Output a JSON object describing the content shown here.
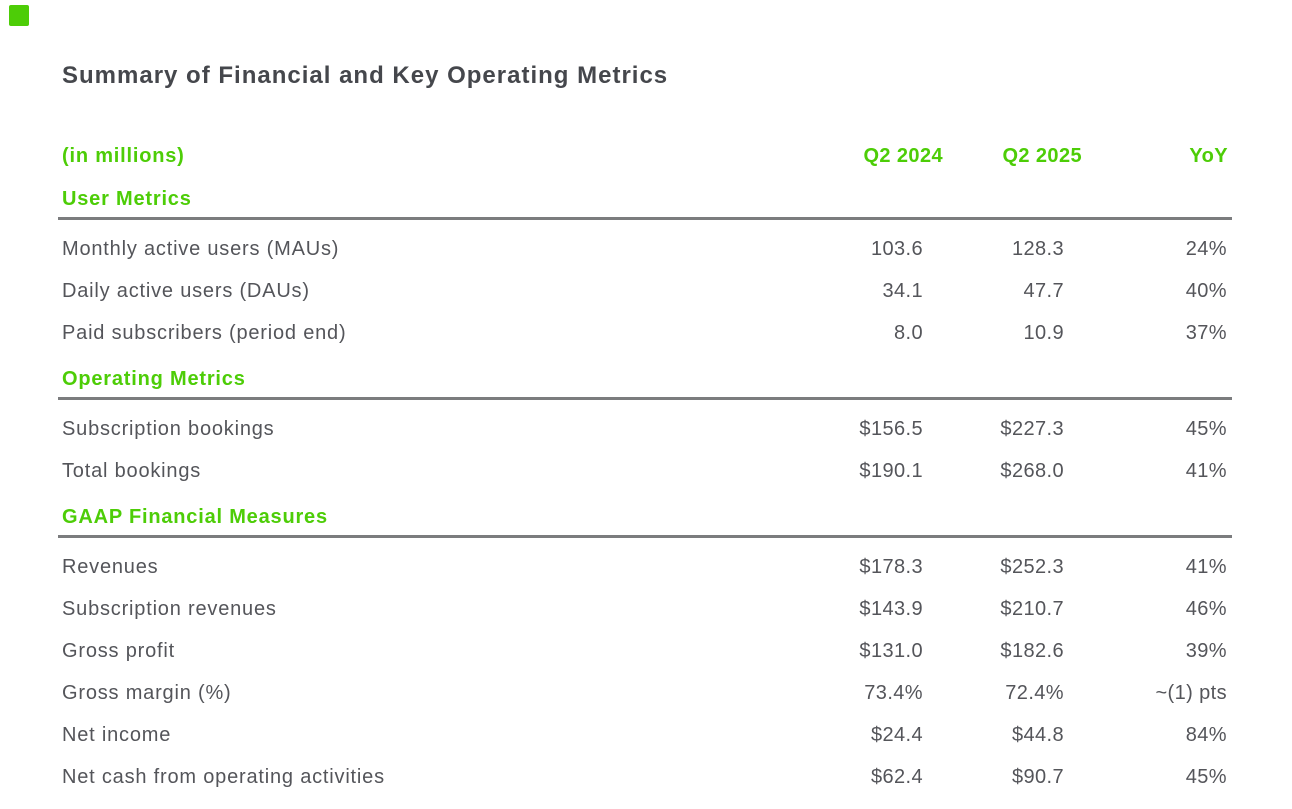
{
  "page": {
    "title": "Summary of Financial and Key Operating Metrics"
  },
  "icons": {
    "brand_mark": "green-square"
  },
  "colors": {
    "accent_green": "#4dcd07",
    "text": "#54555a",
    "heading": "#45474c",
    "rule": "#7b7c7e",
    "background": "#ffffff"
  },
  "table": {
    "unit_label": "(in millions)",
    "columns": [
      "Q2 2024",
      "Q2 2025",
      "YoY"
    ],
    "sections": [
      {
        "title": "User Metrics",
        "rows": [
          {
            "label": "Monthly active users (MAUs)",
            "values": [
              "103.6",
              "128.3",
              "24%"
            ]
          },
          {
            "label": "Daily active users (DAUs)",
            "values": [
              "34.1",
              "47.7",
              "40%"
            ]
          },
          {
            "label": "Paid subscribers (period end)",
            "values": [
              "8.0",
              "10.9",
              "37%"
            ]
          }
        ]
      },
      {
        "title": "Operating Metrics",
        "rows": [
          {
            "label": "Subscription bookings",
            "values": [
              "$156.5",
              "$227.3",
              "45%"
            ]
          },
          {
            "label": "Total bookings",
            "values": [
              "$190.1",
              "$268.0",
              "41%"
            ]
          }
        ]
      },
      {
        "title": "GAAP Financial Measures",
        "rows": [
          {
            "label": "Revenues",
            "values": [
              "$178.3",
              "$252.3",
              "41%"
            ]
          },
          {
            "label": "Subscription revenues",
            "values": [
              "$143.9",
              "$210.7",
              "46%"
            ]
          },
          {
            "label": "Gross profit",
            "values": [
              "$131.0",
              "$182.6",
              "39%"
            ]
          },
          {
            "label": "Gross margin (%)",
            "values": [
              "73.4%",
              "72.4%",
              "~(1) pts"
            ]
          },
          {
            "label": "Net income",
            "values": [
              "$24.4",
              "$44.8",
              "84%"
            ]
          },
          {
            "label": "Net cash from operating activities",
            "values": [
              "$62.4",
              "$90.7",
              "45%"
            ]
          }
        ]
      }
    ]
  }
}
